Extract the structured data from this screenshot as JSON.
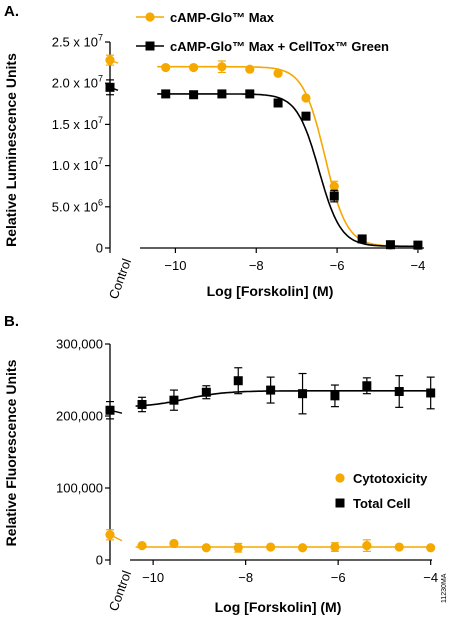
{
  "figure_code": "11230MA",
  "colors": {
    "cytotoxicity": "#F5A800",
    "total": "#000000",
    "axis": "#000000"
  },
  "chart_data": [
    {
      "panel_label": "A.",
      "type": "scatter",
      "title": "",
      "xlabel": "Log [Forskolin] (M)",
      "ylabel": "Relative Luminescence Units",
      "control_label": "Control",
      "xlim": [
        -11,
        -3.8
      ],
      "ylim": [
        0,
        25000000
      ],
      "x_ticks": [
        {
          "value": -10,
          "label": "−10"
        },
        {
          "value": -8,
          "label": "−8"
        },
        {
          "value": -6,
          "label": "−6"
        },
        {
          "value": -4,
          "label": "−4"
        }
      ],
      "y_ticks": [
        {
          "value": 0,
          "label": "0"
        },
        {
          "value": 5000000,
          "base": "5.0 x 10",
          "exp": "6"
        },
        {
          "value": 10000000,
          "base": "1.0 x 10",
          "exp": "7"
        },
        {
          "value": 15000000,
          "base": "1.5 x 10",
          "exp": "7"
        },
        {
          "value": 20000000,
          "base": "2.0 x 10",
          "exp": "7"
        },
        {
          "value": 25000000,
          "base": "2.5 x 10",
          "exp": "7"
        }
      ],
      "legend_position": "top",
      "series": [
        {
          "name": "cAMP-Glo™ Max",
          "key": "cytotoxicity",
          "marker": "circle",
          "control": {
            "y": 22800000,
            "err": 600000
          },
          "x": [
            -10.24,
            -9.55,
            -8.85,
            -8.16,
            -7.46,
            -6.77,
            -6.07,
            -5.38,
            -4.68,
            -4.0
          ],
          "y": [
            21900000,
            21900000,
            22000000,
            21700000,
            21200000,
            18200000,
            7500000,
            1100000,
            350000,
            300000
          ],
          "err": [
            0,
            0,
            700000,
            0,
            0,
            0,
            600000,
            0,
            0,
            0
          ],
          "fit": {
            "bottom": 200000,
            "top": 22000000,
            "logec50": -6.3,
            "hill": -1.6
          }
        },
        {
          "name": "cAMP-Glo™ Max + CellTox™ Green",
          "key": "total",
          "marker": "square",
          "control": {
            "y": 19500000,
            "err": 900000
          },
          "x": [
            -10.24,
            -9.55,
            -8.85,
            -8.16,
            -7.46,
            -6.77,
            -6.07,
            -5.38,
            -4.68,
            -4.0
          ],
          "y": [
            18700000,
            18600000,
            18700000,
            18700000,
            17600000,
            16000000,
            6300000,
            1100000,
            400000,
            350000
          ],
          "err": [
            0,
            0,
            0,
            0,
            0,
            0,
            700000,
            0,
            0,
            0
          ],
          "fit": {
            "bottom": 200000,
            "top": 18700000,
            "logec50": -6.45,
            "hill": -1.6
          }
        }
      ]
    },
    {
      "panel_label": "B.",
      "type": "scatter",
      "title": "",
      "xlabel": "Log [Forskolin] (M)",
      "ylabel": "Relative Fluorescence Units",
      "control_label": "Control",
      "xlim": [
        -10.5,
        -3.95
      ],
      "ylim": [
        0,
        300000
      ],
      "x_ticks": [
        {
          "value": -10,
          "label": "−10"
        },
        {
          "value": -8,
          "label": "−8"
        },
        {
          "value": -6,
          "label": "−6"
        },
        {
          "value": -4,
          "label": "−4"
        }
      ],
      "y_ticks": [
        {
          "value": 0,
          "label": "0"
        },
        {
          "value": 100000,
          "label": "100,000"
        },
        {
          "value": 200000,
          "label": "200,000"
        },
        {
          "value": 300000,
          "label": "300,000"
        }
      ],
      "legend_position": "bottom-right",
      "series": [
        {
          "name": "Cytotoxicity",
          "key": "cytotoxicity",
          "marker": "circle",
          "control": {
            "y": 35000,
            "err": 7000
          },
          "x": [
            -10.24,
            -9.55,
            -8.85,
            -8.16,
            -7.46,
            -6.77,
            -6.07,
            -5.38,
            -4.68,
            -4.0
          ],
          "y": [
            20000,
            23000,
            17000,
            17000,
            18000,
            17000,
            18000,
            20000,
            18000,
            17000
          ],
          "err": [
            0,
            0,
            0,
            6000,
            0,
            0,
            6000,
            8000,
            0,
            0
          ],
          "fit": {
            "constant": 18000
          }
        },
        {
          "name": "Total Cell",
          "key": "total",
          "marker": "square",
          "control": {
            "y": 208000,
            "err": 12000
          },
          "x": [
            -10.24,
            -9.55,
            -8.85,
            -8.16,
            -7.46,
            -6.77,
            -6.07,
            -5.38,
            -4.68,
            -4.0
          ],
          "y": [
            216000,
            222000,
            233000,
            249000,
            236000,
            231000,
            228000,
            242000,
            234000,
            232000
          ],
          "err": [
            10000,
            14000,
            9000,
            18000,
            18000,
            28000,
            15000,
            11000,
            22000,
            22000
          ],
          "fit": {
            "bottom": 212000,
            "top": 235000,
            "logec50": -9.3,
            "hill": 1.0
          }
        }
      ]
    }
  ]
}
